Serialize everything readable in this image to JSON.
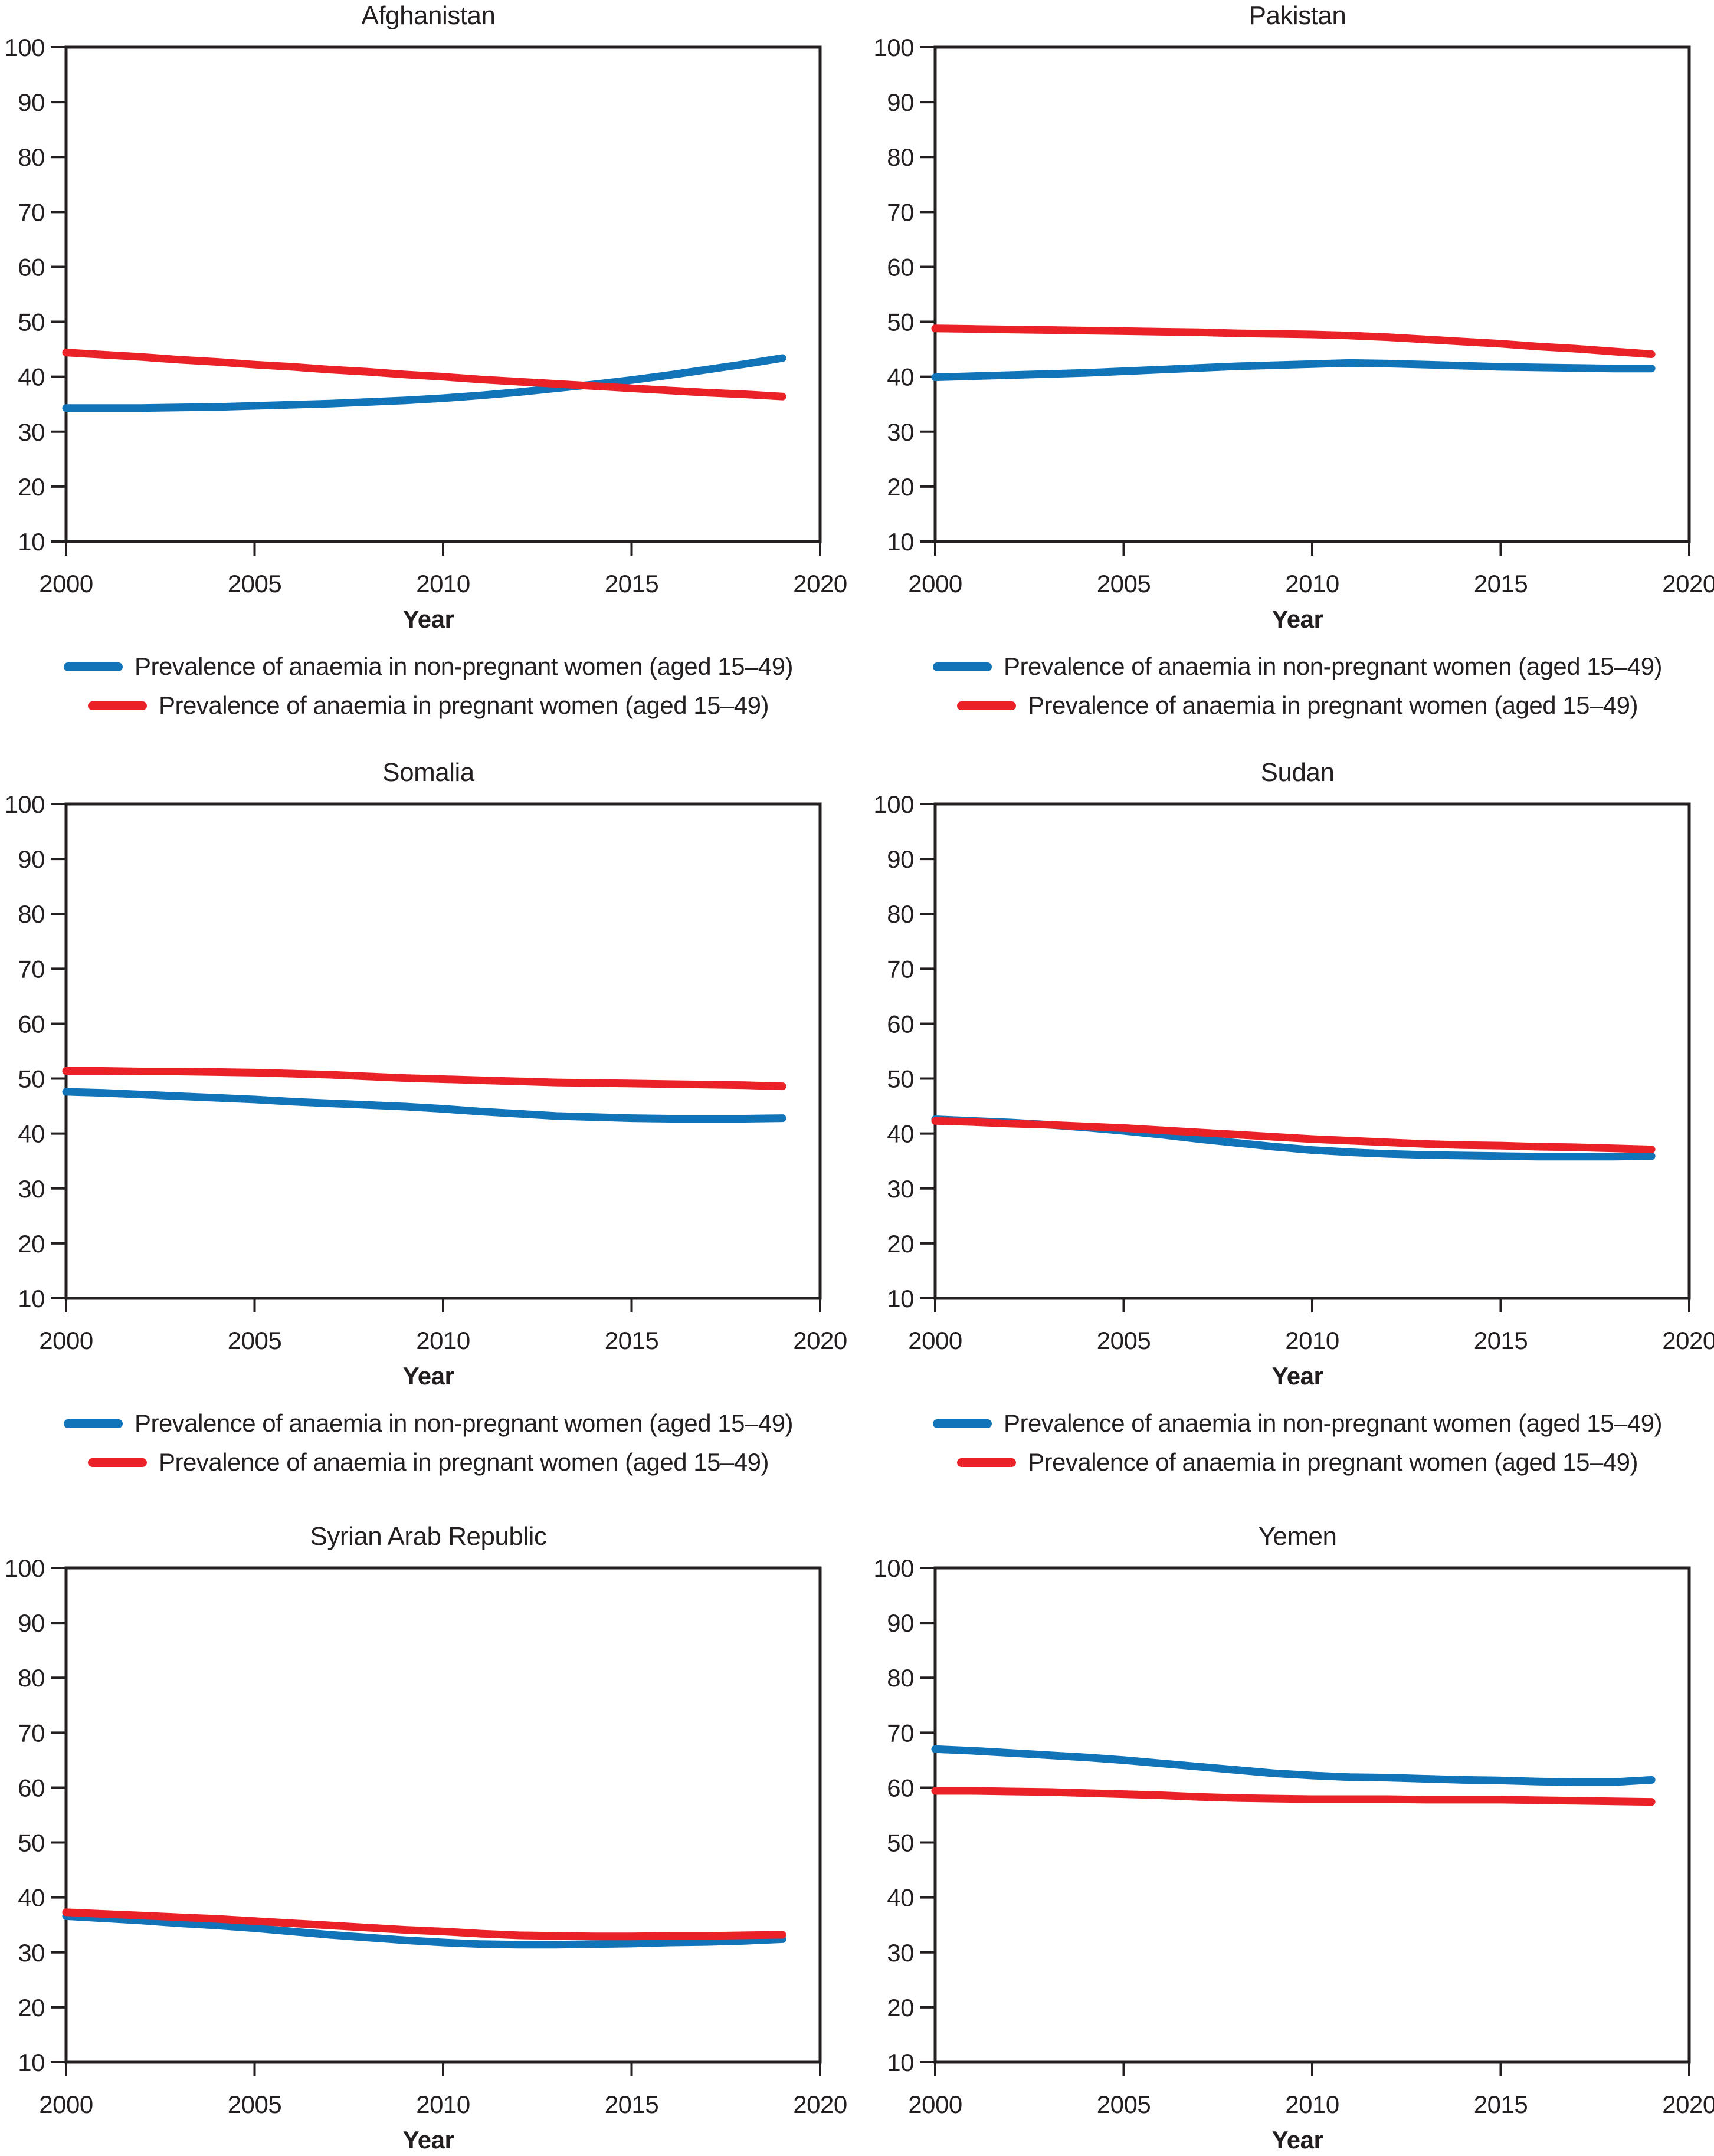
{
  "figure": {
    "xlabel": "Year",
    "legend": [
      {
        "key": "non_pregnant",
        "label": "Prevalence of anaemia in non-pregnant women (aged 15–49)",
        "color": "#1173b8"
      },
      {
        "key": "pregnant",
        "label": "Prevalence of anaemia in pregnant women (aged 15–49)",
        "color": "#ea2127"
      }
    ]
  },
  "chart_data": {
    "type": "line",
    "xlabel": "Year",
    "ylabel": "",
    "xlim": [
      2000,
      2020
    ],
    "ylim": [
      10,
      100
    ],
    "x_ticks": [
      2000,
      2005,
      2010,
      2015,
      2020
    ],
    "y_ticks": [
      10,
      20,
      30,
      40,
      50,
      60,
      70,
      80,
      90,
      100
    ],
    "grid": false,
    "legend_position": "below",
    "colors": {
      "non_pregnant": "#1173b8",
      "pregnant": "#ea2127"
    },
    "years": [
      2000,
      2001,
      2002,
      2003,
      2004,
      2005,
      2006,
      2007,
      2008,
      2009,
      2010,
      2011,
      2012,
      2013,
      2014,
      2015,
      2016,
      2017,
      2018,
      2019
    ],
    "legend": [
      {
        "label": "Prevalence of anaemia in non-pregnant women (aged 15–49)"
      },
      {
        "label": "Prevalence of anaemia in pregnant women (aged 15–49)"
      }
    ],
    "panels": [
      {
        "title": "Afghanistan",
        "xlabel": "Year",
        "legend_visible": true,
        "series": {
          "non_pregnant": [
            34.3,
            34.3,
            34.3,
            34.4,
            34.5,
            34.7,
            34.9,
            35.1,
            35.4,
            35.7,
            36.1,
            36.6,
            37.2,
            37.9,
            38.6,
            39.4,
            40.3,
            41.3,
            42.3,
            43.4
          ],
          "pregnant": [
            44.4,
            44.0,
            43.6,
            43.1,
            42.7,
            42.2,
            41.8,
            41.3,
            40.9,
            40.4,
            40.0,
            39.5,
            39.1,
            38.7,
            38.3,
            37.9,
            37.5,
            37.1,
            36.8,
            36.4
          ]
        }
      },
      {
        "title": "Pakistan",
        "xlabel": "Year",
        "legend_visible": true,
        "series": {
          "non_pregnant": [
            39.9,
            40.1,
            40.3,
            40.5,
            40.7,
            41.0,
            41.3,
            41.6,
            41.9,
            42.1,
            42.3,
            42.5,
            42.4,
            42.2,
            42.0,
            41.8,
            41.7,
            41.6,
            41.5,
            41.5
          ],
          "pregnant": [
            48.8,
            48.7,
            48.6,
            48.5,
            48.4,
            48.3,
            48.2,
            48.1,
            47.9,
            47.8,
            47.7,
            47.5,
            47.2,
            46.8,
            46.4,
            46.0,
            45.5,
            45.1,
            44.6,
            44.1
          ]
        }
      },
      {
        "title": "Somalia",
        "xlabel": "Year",
        "legend_visible": true,
        "series": {
          "non_pregnant": [
            47.6,
            47.4,
            47.1,
            46.8,
            46.5,
            46.2,
            45.8,
            45.5,
            45.2,
            44.9,
            44.5,
            44.0,
            43.6,
            43.2,
            43.0,
            42.8,
            42.7,
            42.7,
            42.7,
            42.8
          ],
          "pregnant": [
            51.4,
            51.4,
            51.3,
            51.3,
            51.2,
            51.1,
            50.9,
            50.7,
            50.4,
            50.1,
            49.9,
            49.7,
            49.5,
            49.3,
            49.2,
            49.1,
            49.0,
            48.9,
            48.8,
            48.6
          ]
        }
      },
      {
        "title": "Sudan",
        "xlabel": "Year",
        "legend_visible": true,
        "series": {
          "non_pregnant": [
            42.6,
            42.3,
            42.0,
            41.6,
            41.1,
            40.5,
            39.8,
            39.0,
            38.3,
            37.6,
            37.0,
            36.6,
            36.3,
            36.1,
            36.0,
            35.9,
            35.8,
            35.8,
            35.8,
            35.9
          ],
          "pregnant": [
            42.3,
            42.1,
            41.8,
            41.6,
            41.3,
            41.0,
            40.6,
            40.2,
            39.8,
            39.4,
            39.0,
            38.7,
            38.4,
            38.1,
            37.9,
            37.8,
            37.6,
            37.5,
            37.3,
            37.1
          ]
        }
      },
      {
        "title": "Syrian Arab Republic",
        "xlabel": "Year",
        "legend_visible": false,
        "series": {
          "non_pregnant": [
            36.6,
            36.2,
            35.8,
            35.3,
            34.9,
            34.4,
            33.8,
            33.2,
            32.7,
            32.2,
            31.8,
            31.5,
            31.4,
            31.4,
            31.5,
            31.6,
            31.8,
            31.9,
            32.1,
            32.4
          ],
          "pregnant": [
            37.3,
            37.0,
            36.7,
            36.4,
            36.1,
            35.7,
            35.3,
            34.9,
            34.5,
            34.1,
            33.8,
            33.4,
            33.1,
            33.0,
            32.9,
            32.9,
            33.0,
            33.0,
            33.1,
            33.2
          ]
        }
      },
      {
        "title": "Yemen",
        "xlabel": "Year",
        "legend_visible": false,
        "series": {
          "non_pregnant": [
            67.0,
            66.7,
            66.3,
            65.9,
            65.5,
            65.0,
            64.4,
            63.8,
            63.2,
            62.6,
            62.2,
            61.9,
            61.8,
            61.6,
            61.4,
            61.3,
            61.1,
            61.0,
            61.0,
            61.4
          ],
          "pregnant": [
            59.4,
            59.4,
            59.3,
            59.2,
            59.0,
            58.8,
            58.6,
            58.3,
            58.1,
            58.0,
            57.9,
            57.9,
            57.9,
            57.8,
            57.8,
            57.8,
            57.7,
            57.6,
            57.5,
            57.4
          ]
        }
      }
    ]
  }
}
